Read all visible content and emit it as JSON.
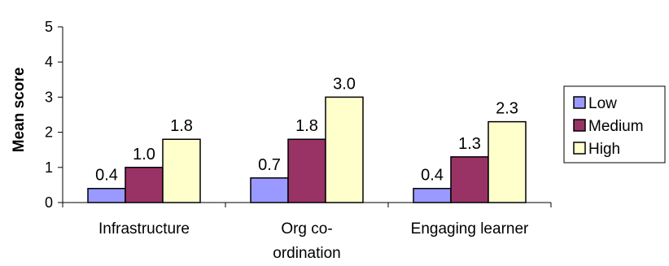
{
  "chart_data": {
    "type": "bar",
    "title": "",
    "xlabel": "",
    "ylabel": "Mean score",
    "ylim": [
      0,
      5
    ],
    "yticks": [
      0,
      1,
      2,
      3,
      4,
      5
    ],
    "grid": false,
    "legend_position": "right",
    "categories": [
      [
        "Infrastructure"
      ],
      [
        "Org co-",
        "ordination"
      ],
      [
        "Engaging learner"
      ]
    ],
    "series": [
      {
        "name": "Low",
        "color": "#9999ff",
        "values": [
          0.4,
          0.7,
          0.4
        ],
        "labels": [
          "0.4",
          "0.7",
          "0.4"
        ]
      },
      {
        "name": "Medium",
        "color": "#993366",
        "values": [
          1.0,
          1.8,
          1.3
        ],
        "labels": [
          "1.0",
          "1.8",
          "1.3"
        ]
      },
      {
        "name": "High",
        "color": "#ffffcc",
        "values": [
          1.8,
          3.0,
          2.3
        ],
        "labels": [
          "1.8",
          "3.0",
          "2.3"
        ]
      }
    ]
  }
}
